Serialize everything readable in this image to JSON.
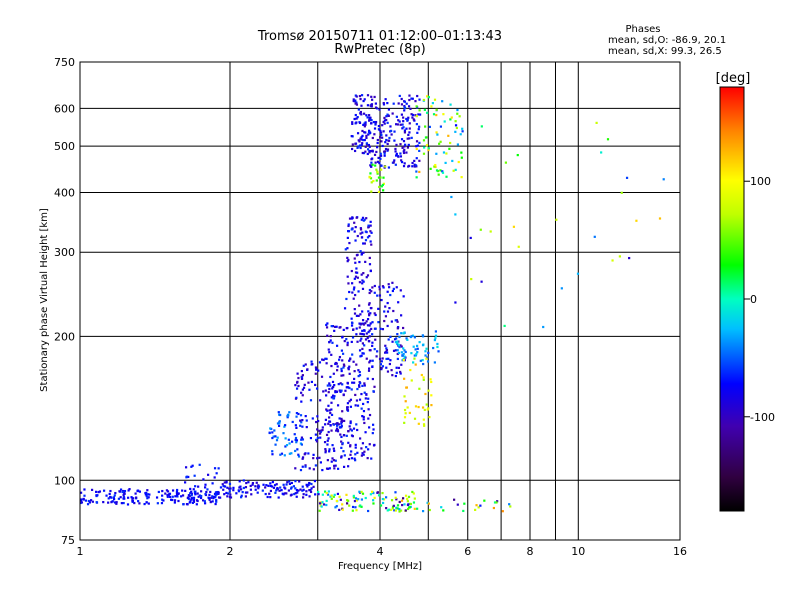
{
  "chart_data": {
    "type": "scatter",
    "title": "Tromsø 20150711 01:12:00–01:13:43",
    "subtitle": "RwPretec (8p)",
    "xlabel": "Frequency [MHz]",
    "ylabel": "Stationary phase Virtual Height [km]",
    "x_scale": "log",
    "y_scale": "log",
    "xlim": [
      1,
      16
    ],
    "ylim": [
      75,
      750
    ],
    "x_ticks": [
      1,
      2,
      4,
      6,
      8,
      10,
      16
    ],
    "x_minor_ticks": [
      3,
      5,
      7,
      9
    ],
    "y_ticks": [
      75,
      100,
      200,
      300,
      400,
      500,
      600,
      750
    ],
    "grid": true,
    "phase_box": {
      "title": "Phases",
      "line1": "mean, sd,O: -86.9, 20.1",
      "line2": "mean, sd,X:  99.3, 26.5"
    },
    "colorbar": {
      "label": "[deg]",
      "range": [
        -180,
        180
      ],
      "ticks": [
        100,
        0,
        -100
      ]
    },
    "clusters": [
      {
        "x": [
          1.0,
          1.9
        ],
        "y": [
          89,
          96
        ],
        "phase": [
          -95,
          -60
        ],
        "n": 190
      },
      {
        "x": [
          1.6,
          1.9
        ],
        "y": [
          90,
          108
        ],
        "phase": [
          -95,
          -60
        ],
        "n": 30
      },
      {
        "x": [
          1.9,
          3.0
        ],
        "y": [
          92,
          100
        ],
        "phase": [
          -100,
          -60
        ],
        "n": 130
      },
      {
        "x": [
          2.4,
          2.8
        ],
        "y": [
          112,
          140
        ],
        "phase": [
          -75,
          -30
        ],
        "n": 60
      },
      {
        "x": [
          2.7,
          3.5
        ],
        "y": [
          105,
          180
        ],
        "phase": [
          -110,
          -60
        ],
        "n": 170
      },
      {
        "x": [
          3.1,
          3.9
        ],
        "y": [
          110,
          215
        ],
        "phase": [
          -110,
          -60
        ],
        "n": 240
      },
      {
        "x": [
          3.4,
          3.85
        ],
        "y": [
          200,
          360
        ],
        "phase": [
          -110,
          -60
        ],
        "n": 120
      },
      {
        "x": [
          3.8,
          4.5
        ],
        "y": [
          165,
          260
        ],
        "phase": [
          -110,
          -60
        ],
        "n": 110
      },
      {
        "x": [
          4.3,
          5.3
        ],
        "y": [
          175,
          205
        ],
        "phase": [
          -60,
          -10
        ],
        "n": 60
      },
      {
        "x": [
          4.4,
          5.1
        ],
        "y": [
          130,
          180
        ],
        "phase": [
          60,
          130
        ],
        "n": 40
      },
      {
        "x": [
          3.5,
          3.85
        ],
        "y": [
          480,
          640
        ],
        "phase": [
          -110,
          -60
        ],
        "n": 90
      },
      {
        "x": [
          3.8,
          4.8
        ],
        "y": [
          450,
          640
        ],
        "phase": [
          -110,
          -60
        ],
        "n": 200
      },
      {
        "x": [
          4.7,
          5.9
        ],
        "y": [
          430,
          640
        ],
        "phase": [
          -80,
          130
        ],
        "n": 80
      },
      {
        "x": [
          3.0,
          4.7
        ],
        "y": [
          86,
          95
        ],
        "phase": [
          -130,
          120
        ],
        "n": 110
      },
      {
        "x": [
          4.3,
          7.5
        ],
        "y": [
          86,
          92
        ],
        "phase": [
          -130,
          140
        ],
        "n": 30
      },
      {
        "x": [
          3.8,
          4.1
        ],
        "y": [
          400,
          460
        ],
        "phase": [
          20,
          90
        ],
        "n": 25
      },
      {
        "x": [
          5.5,
          15.0
        ],
        "y": [
          200,
          620
        ],
        "phase": [
          -100,
          130
        ],
        "n": 30
      }
    ]
  }
}
